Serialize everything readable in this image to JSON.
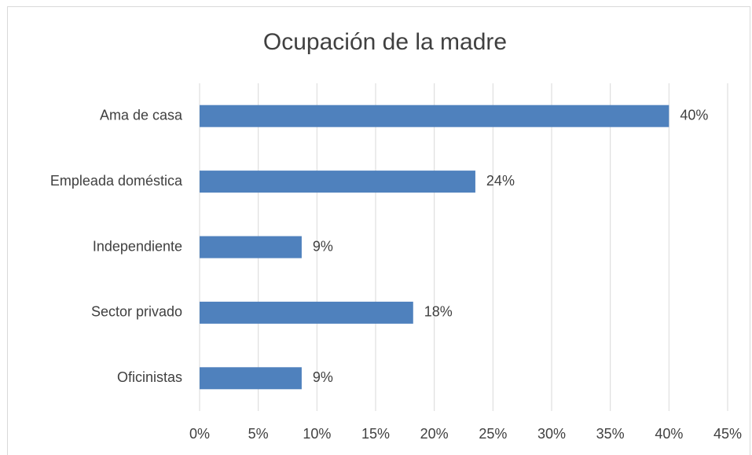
{
  "chart_data": {
    "type": "barh",
    "title": "Ocupación de la madre",
    "categories": [
      "Ama de casa",
      "Empleada doméstica",
      "Independiente",
      "Sector privado",
      "Oficinistas"
    ],
    "values": [
      40,
      23.5,
      8.7,
      18.2,
      8.7
    ],
    "value_labels": [
      "40%",
      "24%",
      "9%",
      "18%",
      "9%"
    ],
    "color": "#4f81bd",
    "xlim": [
      0,
      45
    ],
    "xticks": [
      {
        "value": 0,
        "label": "0%"
      },
      {
        "value": 5,
        "label": "5%"
      },
      {
        "value": 10,
        "label": "10%"
      },
      {
        "value": 15,
        "label": "15%"
      },
      {
        "value": 20,
        "label": "20%"
      },
      {
        "value": 25,
        "label": "25%"
      },
      {
        "value": 30,
        "label": "30%"
      },
      {
        "value": 35,
        "label": "35%"
      },
      {
        "value": 40,
        "label": "40%"
      },
      {
        "value": 45,
        "label": "45%"
      }
    ],
    "grid": true
  }
}
